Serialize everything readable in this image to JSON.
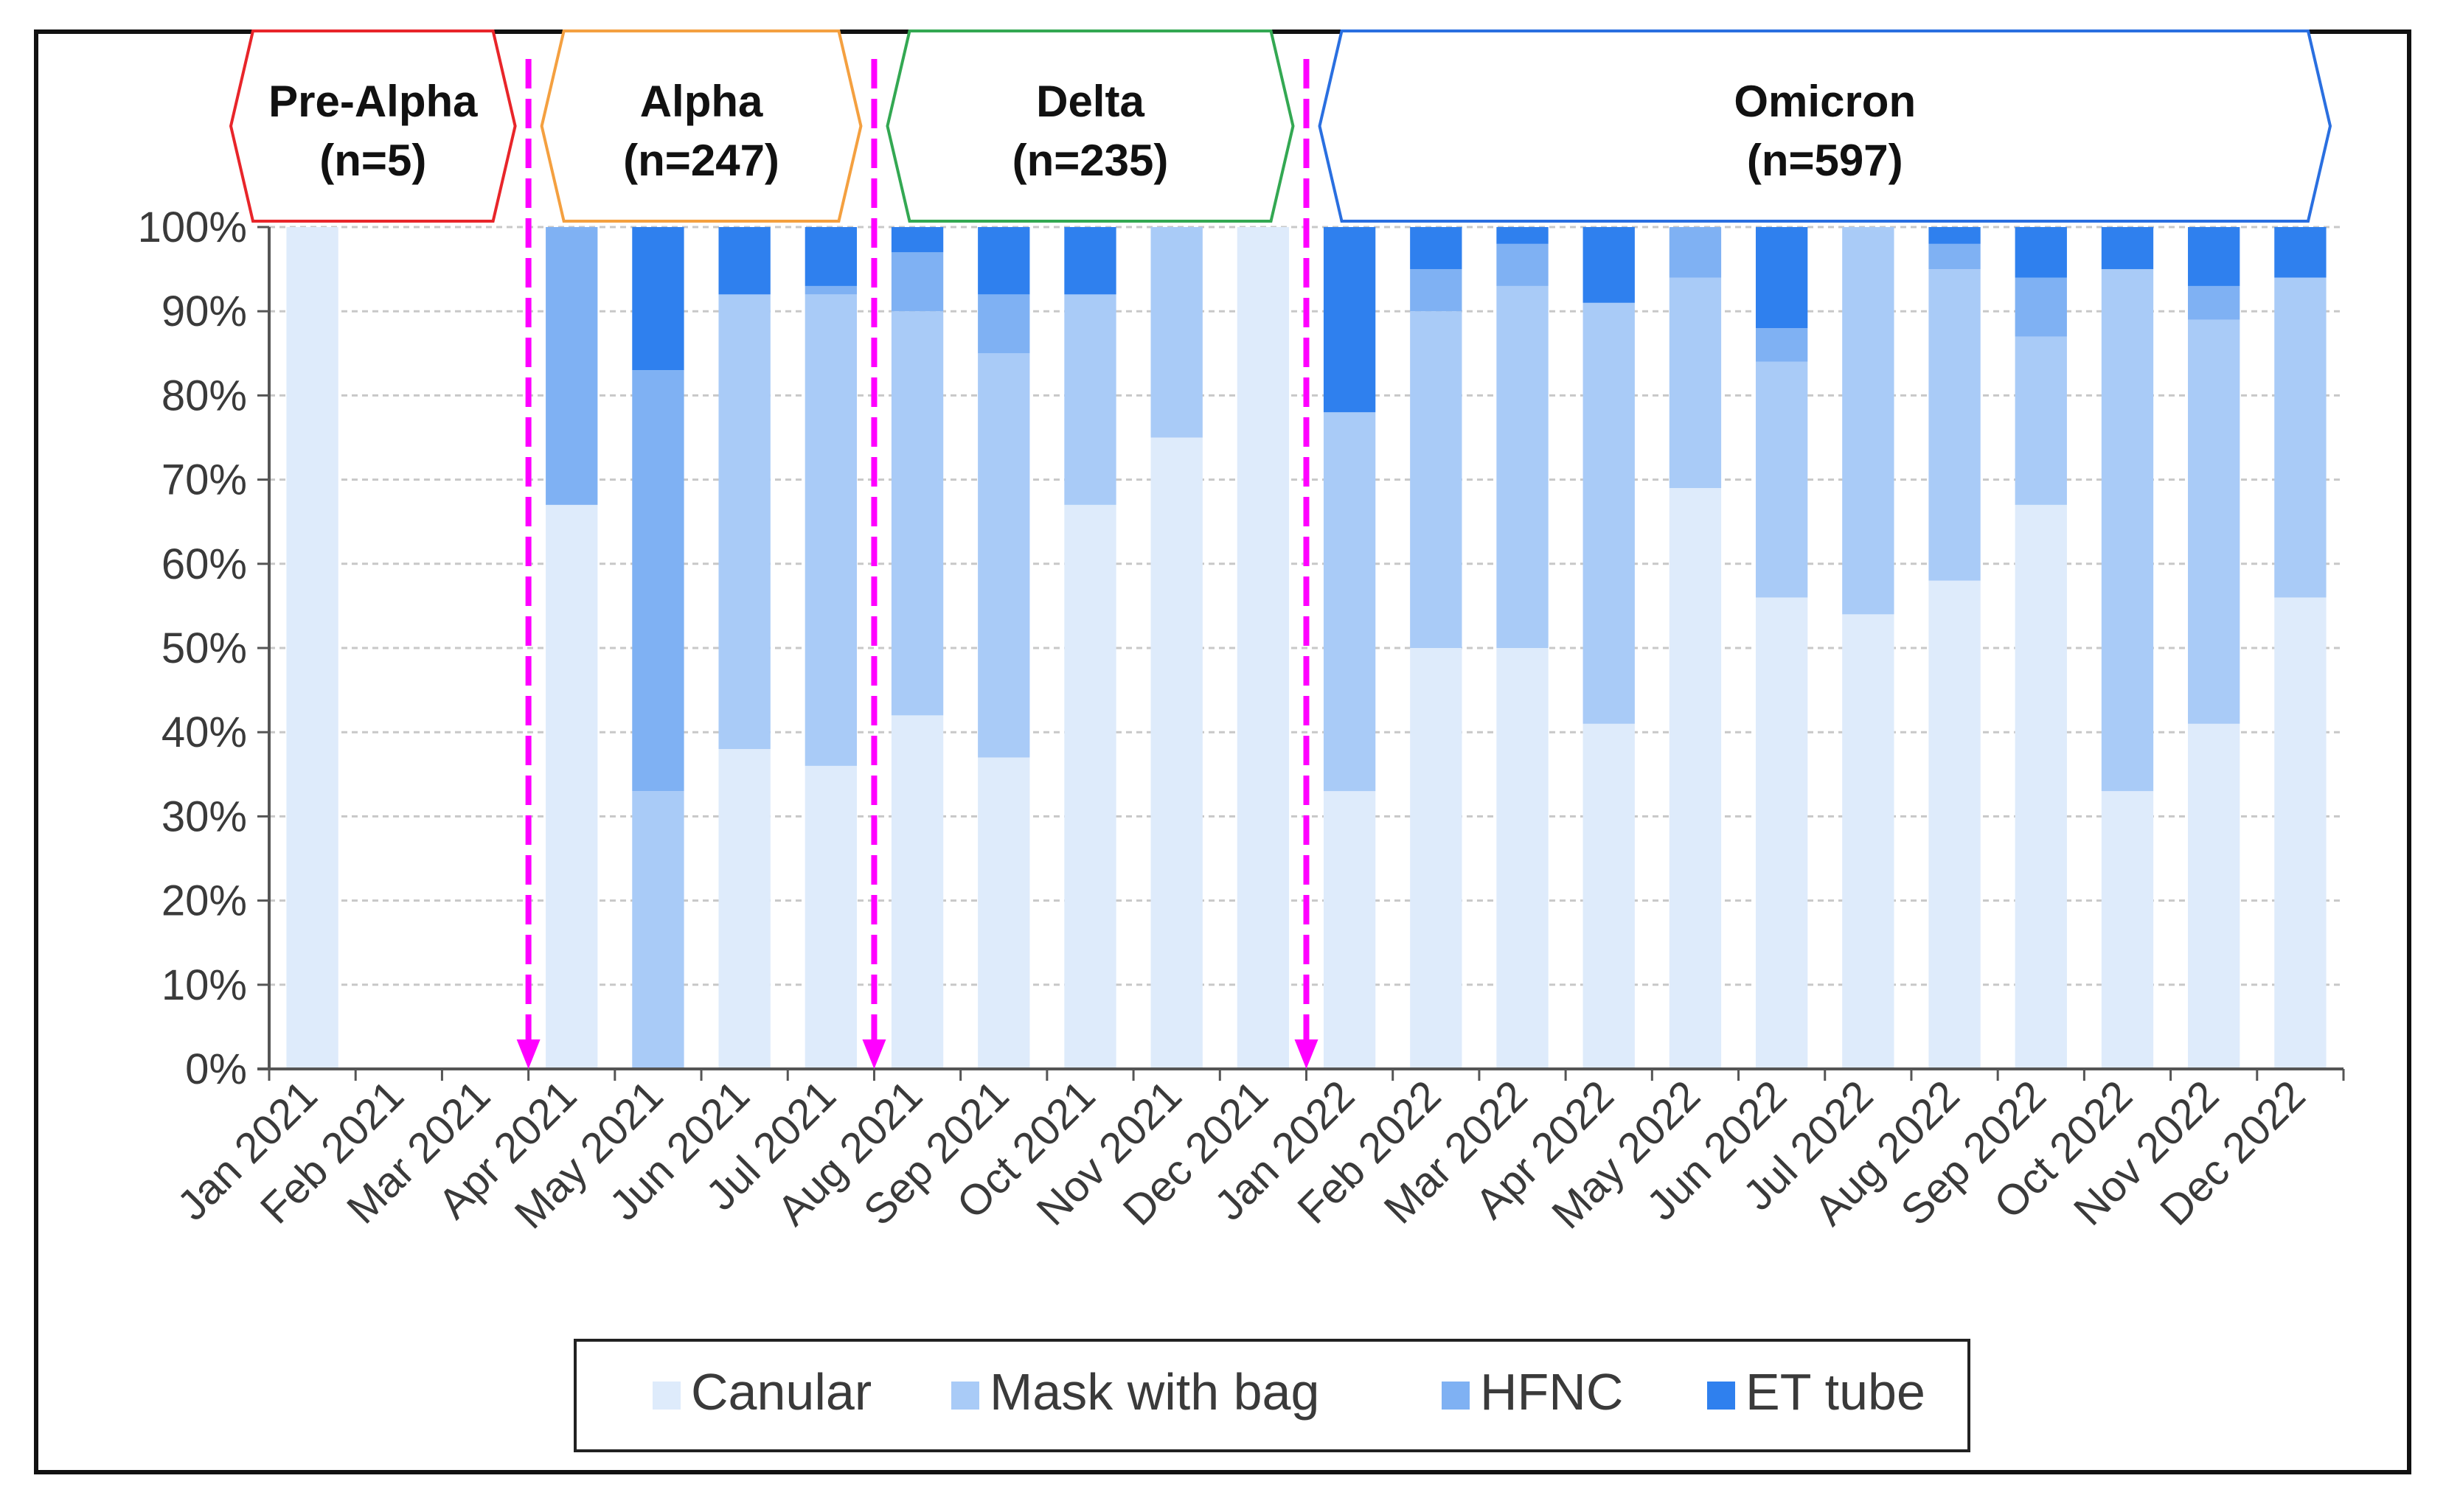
{
  "chart_data": {
    "type": "bar",
    "stacked": true,
    "percent": true,
    "categories": [
      "Jan 2021",
      "Feb 2021",
      "Mar 2021",
      "Apr 2021",
      "May 2021",
      "Jun 2021",
      "Jul 2021",
      "Aug 2021",
      "Sep 2021",
      "Oct 2021",
      "Nov 2021",
      "Dec 2021",
      "Jan 2022",
      "Feb 2022",
      "Mar 2022",
      "Apr 2022",
      "May 2022",
      "Jun 2022",
      "Jul 2022",
      "Aug 2022",
      "Sep 2022",
      "Oct 2022",
      "Nov 2022",
      "Dec 2022"
    ],
    "series": [
      {
        "name": "Canular",
        "color": "#deebfb",
        "values": [
          100,
          0,
          0,
          67,
          0,
          38,
          36,
          42,
          37,
          67,
          75,
          100,
          33,
          50,
          50,
          41,
          69,
          56,
          54,
          58,
          67,
          33,
          41,
          56
        ]
      },
      {
        "name": "Mask with bag",
        "color": "#a9cbf7",
        "values": [
          0,
          0,
          0,
          0,
          33,
          54,
          56,
          48,
          48,
          25,
          25,
          0,
          45,
          40,
          43,
          50,
          25,
          28,
          46,
          37,
          20,
          62,
          48,
          38
        ]
      },
      {
        "name": "HFNC",
        "color": "#7fb1f3",
        "values": [
          0,
          0,
          0,
          33,
          50,
          0,
          1,
          7,
          7,
          0,
          0,
          0,
          0,
          5,
          5,
          0,
          6,
          4,
          0,
          3,
          7,
          0,
          4,
          0
        ]
      },
      {
        "name": "ET tube",
        "color": "#2f80ee",
        "values": [
          0,
          0,
          0,
          0,
          17,
          8,
          7,
          3,
          8,
          8,
          0,
          0,
          22,
          5,
          2,
          9,
          0,
          12,
          0,
          2,
          6,
          5,
          7,
          6
        ]
      }
    ],
    "yticks": [
      "0%",
      "10%",
      "20%",
      "30%",
      "40%",
      "50%",
      "60%",
      "70%",
      "80%",
      "90%",
      "100%"
    ],
    "ylim": [
      0,
      100
    ],
    "grid": true,
    "legend_position": "bottom",
    "variant_periods": [
      {
        "name": "Pre-Alpha",
        "n": "(n=5)",
        "color": "#e8252a",
        "start_index": 0,
        "end_index": 2
      },
      {
        "name": "Alpha",
        "n": "(n=247)",
        "color": "#f4a040",
        "start_index": 3,
        "end_index": 6
      },
      {
        "name": "Delta",
        "n": "(n=235)",
        "color": "#33a852",
        "start_index": 7,
        "end_index": 11
      },
      {
        "name": "Omicron",
        "n": "(n=597)",
        "color": "#2a6fe0",
        "start_index": 12,
        "end_index": 23
      }
    ],
    "divider_color": "#ff00ff"
  }
}
